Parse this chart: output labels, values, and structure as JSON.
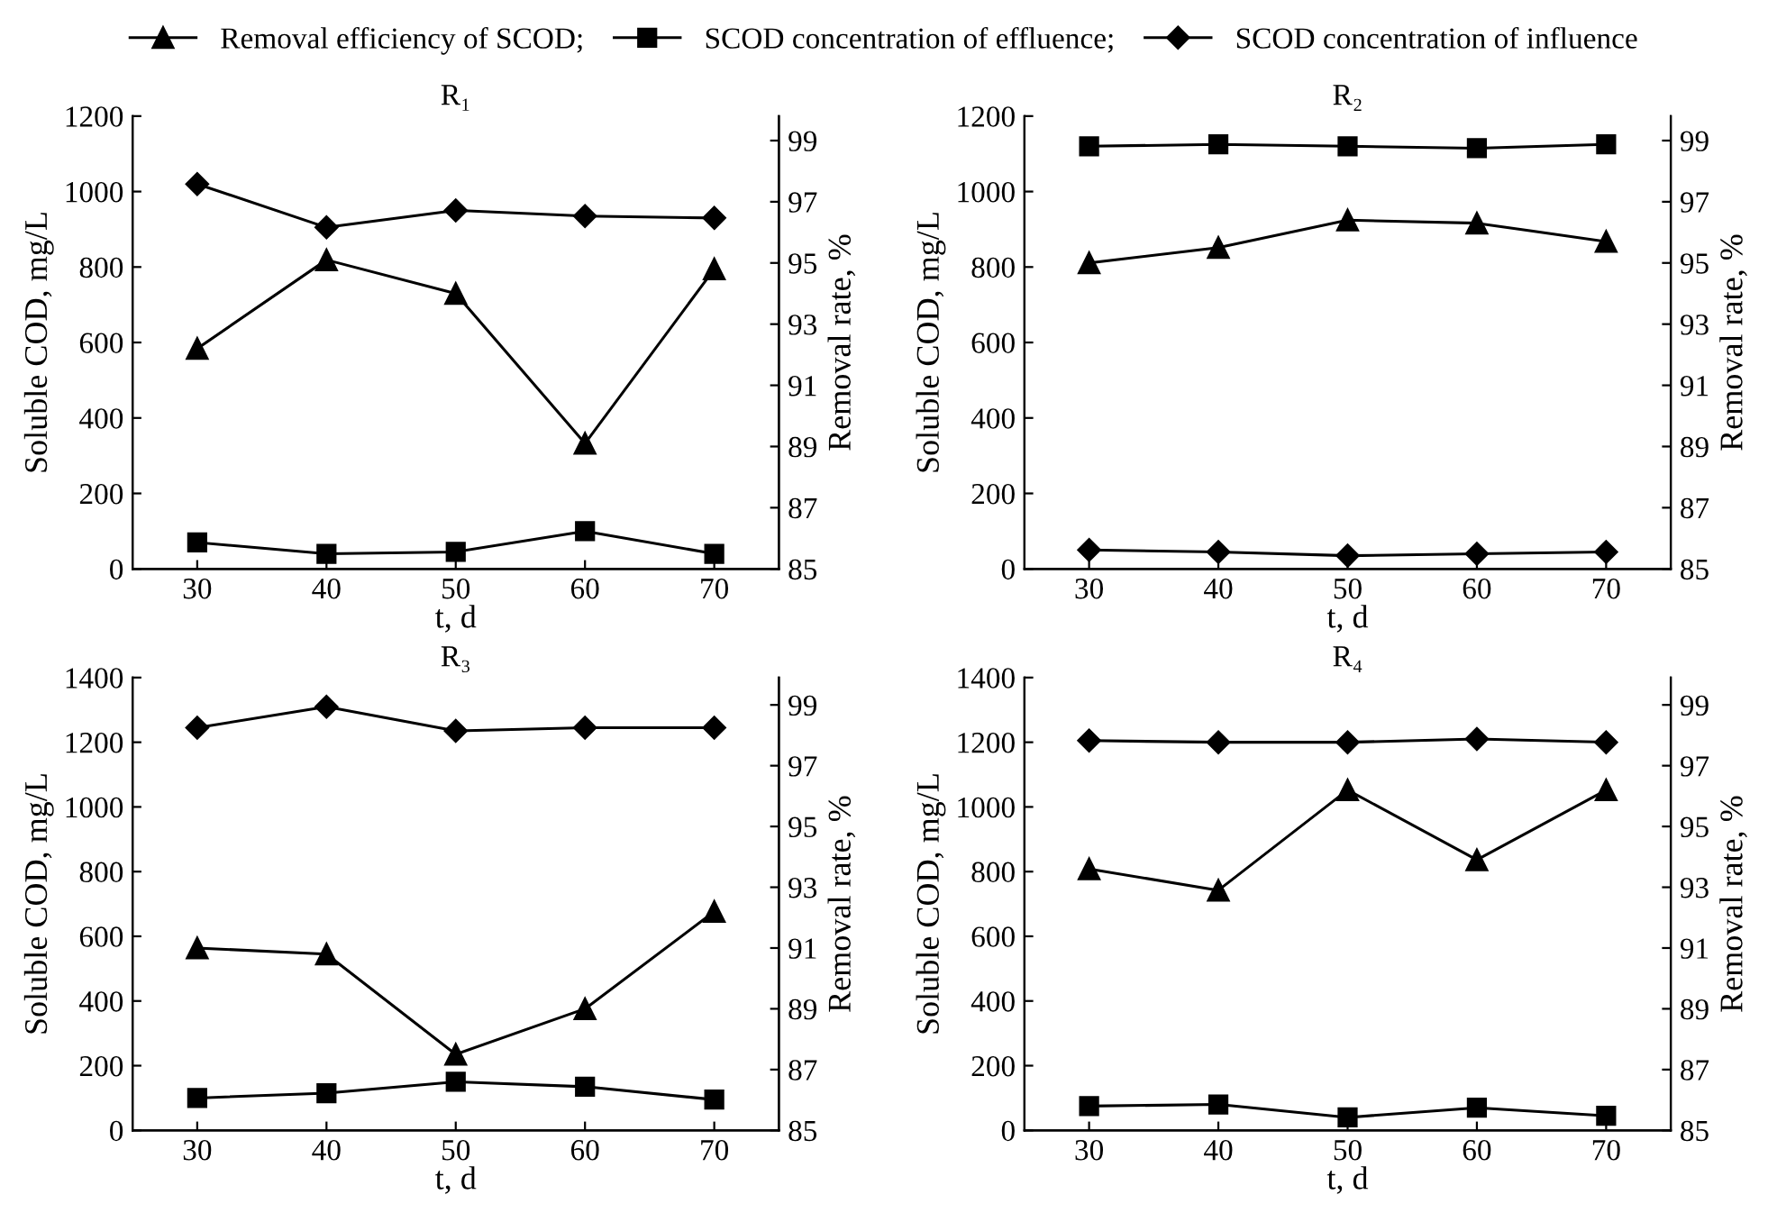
{
  "chart_data": [
    {
      "type": "line",
      "title": "R₁",
      "xlabel": "t, d",
      "ylabel": "Soluble COD, mg/L",
      "y2label": "Removal rate, %",
      "x": [
        30,
        40,
        50,
        60,
        70
      ],
      "xlim": [
        25,
        75
      ],
      "xticks": [
        30,
        40,
        50,
        60,
        70
      ],
      "ylim": [
        0,
        1200
      ],
      "yticks": [
        0,
        200,
        400,
        600,
        800,
        1000,
        1200
      ],
      "y2lim": [
        85,
        99.8
      ],
      "y2ticks": [
        85,
        87,
        89,
        91,
        93,
        95,
        97,
        99
      ],
      "legend": "top",
      "grid": false,
      "series": [
        {
          "name": "Removal efficiency of SCOD;",
          "color": "#000000",
          "marker": "triangle",
          "axis": "y2",
          "values": [
            92.2,
            95.1,
            94.0,
            89.1,
            94.8
          ]
        },
        {
          "name": "SCOD concentration of effluence;",
          "color": "#000000",
          "marker": "square",
          "values": [
            70,
            40,
            45,
            100,
            40
          ]
        },
        {
          "name": "SCOD concentration of influence",
          "color": "#000000",
          "marker": "diamond",
          "values": [
            1020,
            905,
            950,
            935,
            930
          ]
        }
      ]
    },
    {
      "type": "line",
      "title": "R₂",
      "xlabel": "t, d",
      "ylabel": "Soluble COD, mg/L",
      "y2label": "Removal rate, %",
      "x": [
        30,
        40,
        50,
        60,
        70
      ],
      "xlim": [
        25,
        75
      ],
      "xticks": [
        30,
        40,
        50,
        60,
        70
      ],
      "ylim": [
        0,
        1200
      ],
      "yticks": [
        0,
        200,
        400,
        600,
        800,
        1000,
        1200
      ],
      "y2lim": [
        85,
        99.8
      ],
      "y2ticks": [
        85,
        87,
        89,
        91,
        93,
        95,
        97,
        99
      ],
      "grid": false,
      "series": [
        {
          "color": "#000000",
          "marker": "triangle",
          "axis": "y2",
          "values": [
            95.0,
            95.5,
            96.4,
            96.3,
            95.7
          ]
        },
        {
          "color": "#000000",
          "marker": "square",
          "values": [
            1120,
            1125,
            1120,
            1115,
            1125
          ]
        },
        {
          "color": "#000000",
          "marker": "diamond",
          "values": [
            50,
            45,
            35,
            40,
            45
          ]
        }
      ]
    },
    {
      "type": "line",
      "title": "R₃",
      "xlabel": "t, d",
      "ylabel": "Soluble COD, mg/L",
      "y2label": "Removal rate, %",
      "x": [
        30,
        40,
        50,
        60,
        70
      ],
      "xlim": [
        25,
        75
      ],
      "xticks": [
        30,
        40,
        50,
        60,
        70
      ],
      "ylim": [
        0,
        1400
      ],
      "yticks": [
        0,
        200,
        400,
        600,
        800,
        1000,
        1200,
        1400
      ],
      "y2lim": [
        85,
        99.9
      ],
      "y2ticks": [
        85,
        87,
        89,
        91,
        93,
        95,
        97,
        99
      ],
      "grid": false,
      "series": [
        {
          "color": "#000000",
          "marker": "triangle",
          "axis": "y2",
          "values": [
            91.0,
            90.8,
            87.5,
            89.0,
            92.2
          ]
        },
        {
          "color": "#000000",
          "marker": "square",
          "values": [
            100,
            115,
            150,
            135,
            95
          ]
        },
        {
          "color": "#000000",
          "marker": "diamond",
          "values": [
            1245,
            1310,
            1235,
            1245,
            1245
          ]
        }
      ]
    },
    {
      "type": "line",
      "title": "R₄",
      "xlabel": "t, d",
      "ylabel": "Soluble COD, mg/L",
      "y2label": "Removal rate, %",
      "x": [
        30,
        40,
        50,
        60,
        70
      ],
      "xlim": [
        25,
        75
      ],
      "xticks": [
        30,
        40,
        50,
        60,
        70
      ],
      "ylim": [
        0,
        1400
      ],
      "yticks": [
        0,
        200,
        400,
        600,
        800,
        1000,
        1200,
        1400
      ],
      "y2lim": [
        85,
        99.9
      ],
      "y2ticks": [
        85,
        87,
        89,
        91,
        93,
        95,
        97,
        99
      ],
      "grid": false,
      "series": [
        {
          "color": "#000000",
          "marker": "triangle",
          "axis": "y2",
          "values": [
            93.6,
            92.9,
            96.2,
            93.9,
            96.2
          ]
        },
        {
          "color": "#000000",
          "marker": "square",
          "values": [
            75,
            80,
            40,
            70,
            45
          ]
        },
        {
          "color": "#000000",
          "marker": "diamond",
          "values": [
            1205,
            1200,
            1200,
            1210,
            1200
          ]
        }
      ]
    }
  ]
}
